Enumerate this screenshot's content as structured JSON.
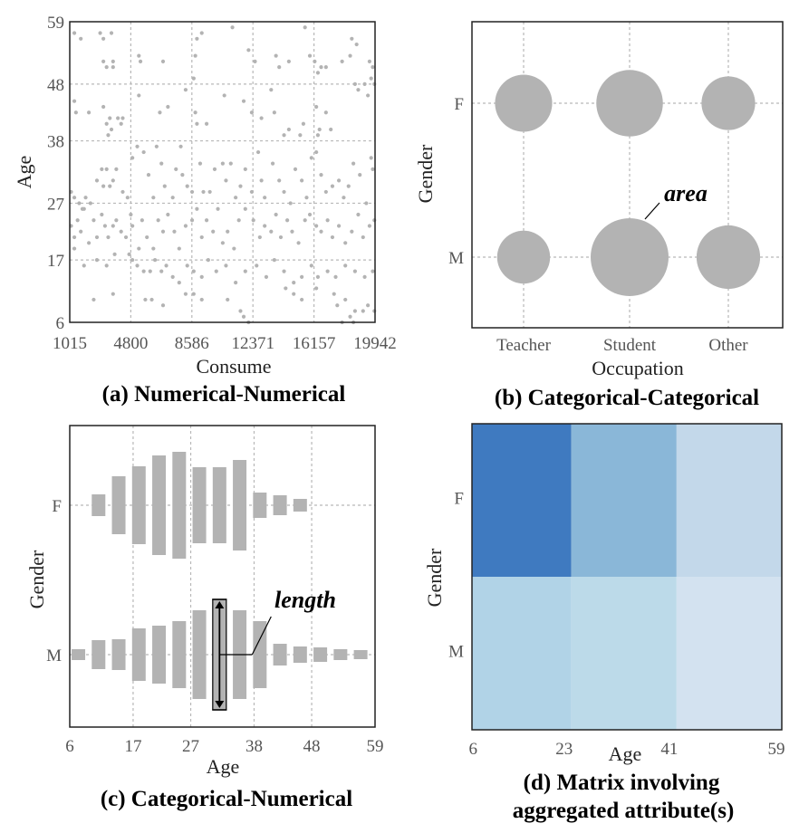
{
  "colors": {
    "mark": "#b3b3b3",
    "grid": "#b8b8b8",
    "text": "#555555"
  },
  "chart_data": [
    {
      "type": "scatter",
      "caption": "(a) Numerical-Numerical",
      "xlabel": "Consume",
      "ylabel": "Age",
      "xlim": [
        1015,
        19942
      ],
      "ylim": [
        6,
        59
      ],
      "xticks": [
        "1015",
        "4800",
        "8586",
        "12371",
        "16157",
        "19942"
      ],
      "yticks": [
        "6",
        "17",
        "27",
        "38",
        "48",
        "59"
      ],
      "grid": true,
      "points": [
        [
          1300,
          57
        ],
        [
          1700,
          56
        ],
        [
          2900,
          57
        ],
        [
          3100,
          56
        ],
        [
          3600,
          57
        ],
        [
          3100,
          52
        ],
        [
          3300,
          51
        ],
        [
          3700,
          52
        ],
        [
          3700,
          51
        ],
        [
          5300,
          53
        ],
        [
          5400,
          52
        ],
        [
          6800,
          52
        ],
        [
          8800,
          53
        ],
        [
          8900,
          56
        ],
        [
          9200,
          57
        ],
        [
          11100,
          58
        ],
        [
          12100,
          54
        ],
        [
          12500,
          52
        ],
        [
          13800,
          53
        ],
        [
          14000,
          51
        ],
        [
          14600,
          52
        ],
        [
          15600,
          58
        ],
        [
          15900,
          53
        ],
        [
          16200,
          52
        ],
        [
          16400,
          50
        ],
        [
          16600,
          51
        ],
        [
          16900,
          51
        ],
        [
          17900,
          52
        ],
        [
          18400,
          53
        ],
        [
          18500,
          56
        ],
        [
          18800,
          55
        ],
        [
          19800,
          51
        ],
        [
          19600,
          52
        ],
        [
          1300,
          45
        ],
        [
          1400,
          43
        ],
        [
          2200,
          43
        ],
        [
          3100,
          44
        ],
        [
          3300,
          41
        ],
        [
          3500,
          42
        ],
        [
          3400,
          39
        ],
        [
          3600,
          40
        ],
        [
          4000,
          42
        ],
        [
          4200,
          41
        ],
        [
          4300,
          42
        ],
        [
          5300,
          46
        ],
        [
          6600,
          43
        ],
        [
          7100,
          44
        ],
        [
          8200,
          47
        ],
        [
          8700,
          49
        ],
        [
          8800,
          43
        ],
        [
          8900,
          41
        ],
        [
          9500,
          41
        ],
        [
          10600,
          46
        ],
        [
          11800,
          45
        ],
        [
          12300,
          43
        ],
        [
          12900,
          42
        ],
        [
          13500,
          47
        ],
        [
          13700,
          43
        ],
        [
          14300,
          39
        ],
        [
          14600,
          40
        ],
        [
          15300,
          39
        ],
        [
          15500,
          41
        ],
        [
          16300,
          44
        ],
        [
          16400,
          39
        ],
        [
          16500,
          40
        ],
        [
          16900,
          43
        ],
        [
          17200,
          40
        ],
        [
          18700,
          48
        ],
        [
          18900,
          47
        ],
        [
          19300,
          48
        ],
        [
          19500,
          46
        ],
        [
          19700,
          49
        ],
        [
          19900,
          48
        ],
        [
          1100,
          29
        ],
        [
          1300,
          28
        ],
        [
          1600,
          27
        ],
        [
          1800,
          26
        ],
        [
          2000,
          28
        ],
        [
          2300,
          27
        ],
        [
          2700,
          31
        ],
        [
          3000,
          33
        ],
        [
          3100,
          30
        ],
        [
          3300,
          33
        ],
        [
          3500,
          30
        ],
        [
          3700,
          31
        ],
        [
          3900,
          33
        ],
        [
          4300,
          29
        ],
        [
          4600,
          28
        ],
        [
          4900,
          35
        ],
        [
          5200,
          37
        ],
        [
          5600,
          36
        ],
        [
          5900,
          32
        ],
        [
          6200,
          28
        ],
        [
          6400,
          37
        ],
        [
          6700,
          34
        ],
        [
          6900,
          30
        ],
        [
          7400,
          28
        ],
        [
          7600,
          33
        ],
        [
          7900,
          37
        ],
        [
          8000,
          32
        ],
        [
          8300,
          30
        ],
        [
          8600,
          29
        ],
        [
          9100,
          34
        ],
        [
          9300,
          29
        ],
        [
          9700,
          29
        ],
        [
          10000,
          33
        ],
        [
          10500,
          34
        ],
        [
          10700,
          31
        ],
        [
          11000,
          34
        ],
        [
          11300,
          28
        ],
        [
          11600,
          30
        ],
        [
          11900,
          33
        ],
        [
          12300,
          29
        ],
        [
          12700,
          36
        ],
        [
          12900,
          31
        ],
        [
          13100,
          28
        ],
        [
          13600,
          34
        ],
        [
          14000,
          31
        ],
        [
          14300,
          29
        ],
        [
          14700,
          27
        ],
        [
          15000,
          33
        ],
        [
          15400,
          31
        ],
        [
          15700,
          28
        ],
        [
          16000,
          35
        ],
        [
          16300,
          36
        ],
        [
          16600,
          32
        ],
        [
          16900,
          29
        ],
        [
          17300,
          30
        ],
        [
          17700,
          31
        ],
        [
          18000,
          28
        ],
        [
          18300,
          30
        ],
        [
          18600,
          34
        ],
        [
          19000,
          32
        ],
        [
          19400,
          27
        ],
        [
          19700,
          35
        ],
        [
          19800,
          33
        ],
        [
          1100,
          23
        ],
        [
          1300,
          21
        ],
        [
          1500,
          24
        ],
        [
          1700,
          22
        ],
        [
          1900,
          26
        ],
        [
          2200,
          20
        ],
        [
          2500,
          24
        ],
        [
          2700,
          21
        ],
        [
          3000,
          25
        ],
        [
          3200,
          23
        ],
        [
          3400,
          21
        ],
        [
          3700,
          23
        ],
        [
          3900,
          24
        ],
        [
          4200,
          22
        ],
        [
          4500,
          21
        ],
        [
          4800,
          25
        ],
        [
          4900,
          23
        ],
        [
          5300,
          19
        ],
        [
          5500,
          24
        ],
        [
          5800,
          21
        ],
        [
          6200,
          19
        ],
        [
          6500,
          24
        ],
        [
          6800,
          22
        ],
        [
          7100,
          25
        ],
        [
          7500,
          22
        ],
        [
          7800,
          19
        ],
        [
          8200,
          23
        ],
        [
          8600,
          24
        ],
        [
          8900,
          26
        ],
        [
          9200,
          21
        ],
        [
          9500,
          24
        ],
        [
          9900,
          22
        ],
        [
          10200,
          26
        ],
        [
          10500,
          20
        ],
        [
          10800,
          22
        ],
        [
          11200,
          19
        ],
        [
          11500,
          24
        ],
        [
          11900,
          26
        ],
        [
          12400,
          24
        ],
        [
          12800,
          21
        ],
        [
          13100,
          23
        ],
        [
          13500,
          22
        ],
        [
          13800,
          25
        ],
        [
          14100,
          21
        ],
        [
          14500,
          24
        ],
        [
          14800,
          22
        ],
        [
          15200,
          20
        ],
        [
          15600,
          24
        ],
        [
          15900,
          25
        ],
        [
          16300,
          23
        ],
        [
          16600,
          22
        ],
        [
          17000,
          24
        ],
        [
          17300,
          21
        ],
        [
          17700,
          23
        ],
        [
          18100,
          20
        ],
        [
          18500,
          22
        ],
        [
          18900,
          25
        ],
        [
          19200,
          21
        ],
        [
          19600,
          23
        ],
        [
          19900,
          24
        ],
        [
          1300,
          19
        ],
        [
          1900,
          16
        ],
        [
          2700,
          17
        ],
        [
          3300,
          16
        ],
        [
          3800,
          18
        ],
        [
          4700,
          18
        ],
        [
          4900,
          17
        ],
        [
          5200,
          16
        ],
        [
          5600,
          15
        ],
        [
          6000,
          15
        ],
        [
          6300,
          17
        ],
        [
          6700,
          15
        ],
        [
          7000,
          16
        ],
        [
          7400,
          14
        ],
        [
          7800,
          13
        ],
        [
          8300,
          16
        ],
        [
          8700,
          15
        ],
        [
          9200,
          14
        ],
        [
          9600,
          17
        ],
        [
          10100,
          15
        ],
        [
          10700,
          16
        ],
        [
          11300,
          13
        ],
        [
          11900,
          15
        ],
        [
          12600,
          16
        ],
        [
          13200,
          14
        ],
        [
          13700,
          17
        ],
        [
          14300,
          15
        ],
        [
          14900,
          13
        ],
        [
          15400,
          14
        ],
        [
          16000,
          16
        ],
        [
          16400,
          14
        ],
        [
          17000,
          15
        ],
        [
          17500,
          14
        ],
        [
          18100,
          16
        ],
        [
          18700,
          15
        ],
        [
          19300,
          14
        ],
        [
          19800,
          15
        ],
        [
          2500,
          10
        ],
        [
          3700,
          11
        ],
        [
          5700,
          10
        ],
        [
          6100,
          10
        ],
        [
          6800,
          9
        ],
        [
          8200,
          11
        ],
        [
          8700,
          11
        ],
        [
          9200,
          10
        ],
        [
          10800,
          10
        ],
        [
          11600,
          8
        ],
        [
          11800,
          7
        ],
        [
          12100,
          6
        ],
        [
          14400,
          12
        ],
        [
          14900,
          11
        ],
        [
          15400,
          10
        ],
        [
          16300,
          12
        ],
        [
          17400,
          11
        ],
        [
          17600,
          9
        ],
        [
          18100,
          10
        ],
        [
          18400,
          7
        ],
        [
          18700,
          8
        ],
        [
          19200,
          8
        ],
        [
          19500,
          9
        ],
        [
          19900,
          8
        ],
        [
          17900,
          6
        ],
        [
          18600,
          6
        ]
      ]
    },
    {
      "type": "bubble",
      "caption": "(b) Categorical-Categorical",
      "xlabel": "Occupation",
      "ylabel": "Gender",
      "categories": [
        "Teacher",
        "Student",
        "Other"
      ],
      "groups": [
        "F",
        "M"
      ],
      "grid": true,
      "values": [
        {
          "group": "F",
          "category": "Teacher",
          "value": 42
        },
        {
          "group": "F",
          "category": "Student",
          "value": 57
        },
        {
          "group": "F",
          "category": "Other",
          "value": 37
        },
        {
          "group": "M",
          "category": "Teacher",
          "value": 36
        },
        {
          "group": "M",
          "category": "Student",
          "value": 78
        },
        {
          "group": "M",
          "category": "Other",
          "value": 52
        }
      ],
      "annotation": "area"
    },
    {
      "type": "bar",
      "caption": "(c) Categorical-Numerical",
      "xlabel": "Age",
      "ylabel": "Gender",
      "groups": [
        "F",
        "M"
      ],
      "xlim": [
        6,
        59
      ],
      "xticks": [
        "6",
        "17",
        "27",
        "38",
        "48",
        "59"
      ],
      "bin_centers": [
        7.5,
        11,
        14.5,
        18,
        21.5,
        25,
        28.5,
        32,
        35.5,
        39,
        42.5,
        46,
        49.5,
        53,
        56.5
      ],
      "series": [
        {
          "name": "F",
          "values": [
            0,
            24,
            64,
            86,
            110,
            118,
            84,
            84,
            100,
            28,
            22,
            14,
            0,
            0,
            0
          ]
        },
        {
          "name": "M",
          "values": [
            12,
            32,
            34,
            58,
            64,
            74,
            98,
            122,
            98,
            74,
            24,
            18,
            16,
            12,
            10
          ]
        }
      ],
      "highlight_bin": 7,
      "grid": true,
      "annotation": "length"
    },
    {
      "type": "heatmap",
      "caption": "(d) Matrix involving aggregated attribute(s)",
      "xlabel": "Age",
      "ylabel": "Gender",
      "x_edges": [
        6,
        23,
        41,
        59
      ],
      "xticks": [
        "6",
        "23",
        "41",
        "59"
      ],
      "rows": [
        "F",
        "M"
      ],
      "colors": [
        [
          "#3f7ac0",
          "#8ab7d8",
          "#c3d8ea"
        ],
        [
          "#b1d3e7",
          "#bcdae9",
          "#d3e2f0"
        ]
      ]
    }
  ]
}
